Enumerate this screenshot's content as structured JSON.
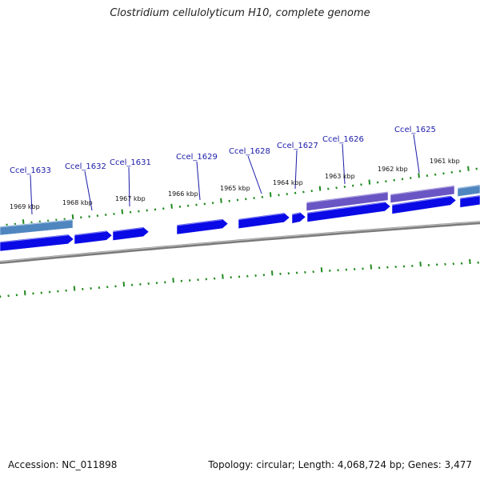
{
  "header": {
    "title": "Clostridium cellulolyticum H10, complete genome"
  },
  "footer": {
    "accession": "Accession: NC_011898",
    "summary": "Topology: circular; Length: 4,068,724 bp; Genes: 3,477"
  },
  "colors": {
    "forward_cds": "#0a0ae6",
    "gene_light_blue": "#4f86c0",
    "gene_purple": "#6a55c4",
    "backbone": "#7a7a7a",
    "tick": "#1f8a1f",
    "leader_line": "#1a1aa8"
  },
  "map": {
    "kbp_labels": [
      "1969 kbp",
      "1968 kbp",
      "1967 kbp",
      "1966 kbp",
      "1965 kbp",
      "1964 kbp",
      "1963 kbp",
      "1962 kbp",
      "1961 kbp"
    ],
    "gene_labels": [
      "Ccel_1633",
      "Ccel_1632",
      "Ccel_1631",
      "Ccel_1629",
      "Ccel_1628",
      "Ccel_1627",
      "Ccel_1626",
      "Ccel_1625"
    ]
  }
}
